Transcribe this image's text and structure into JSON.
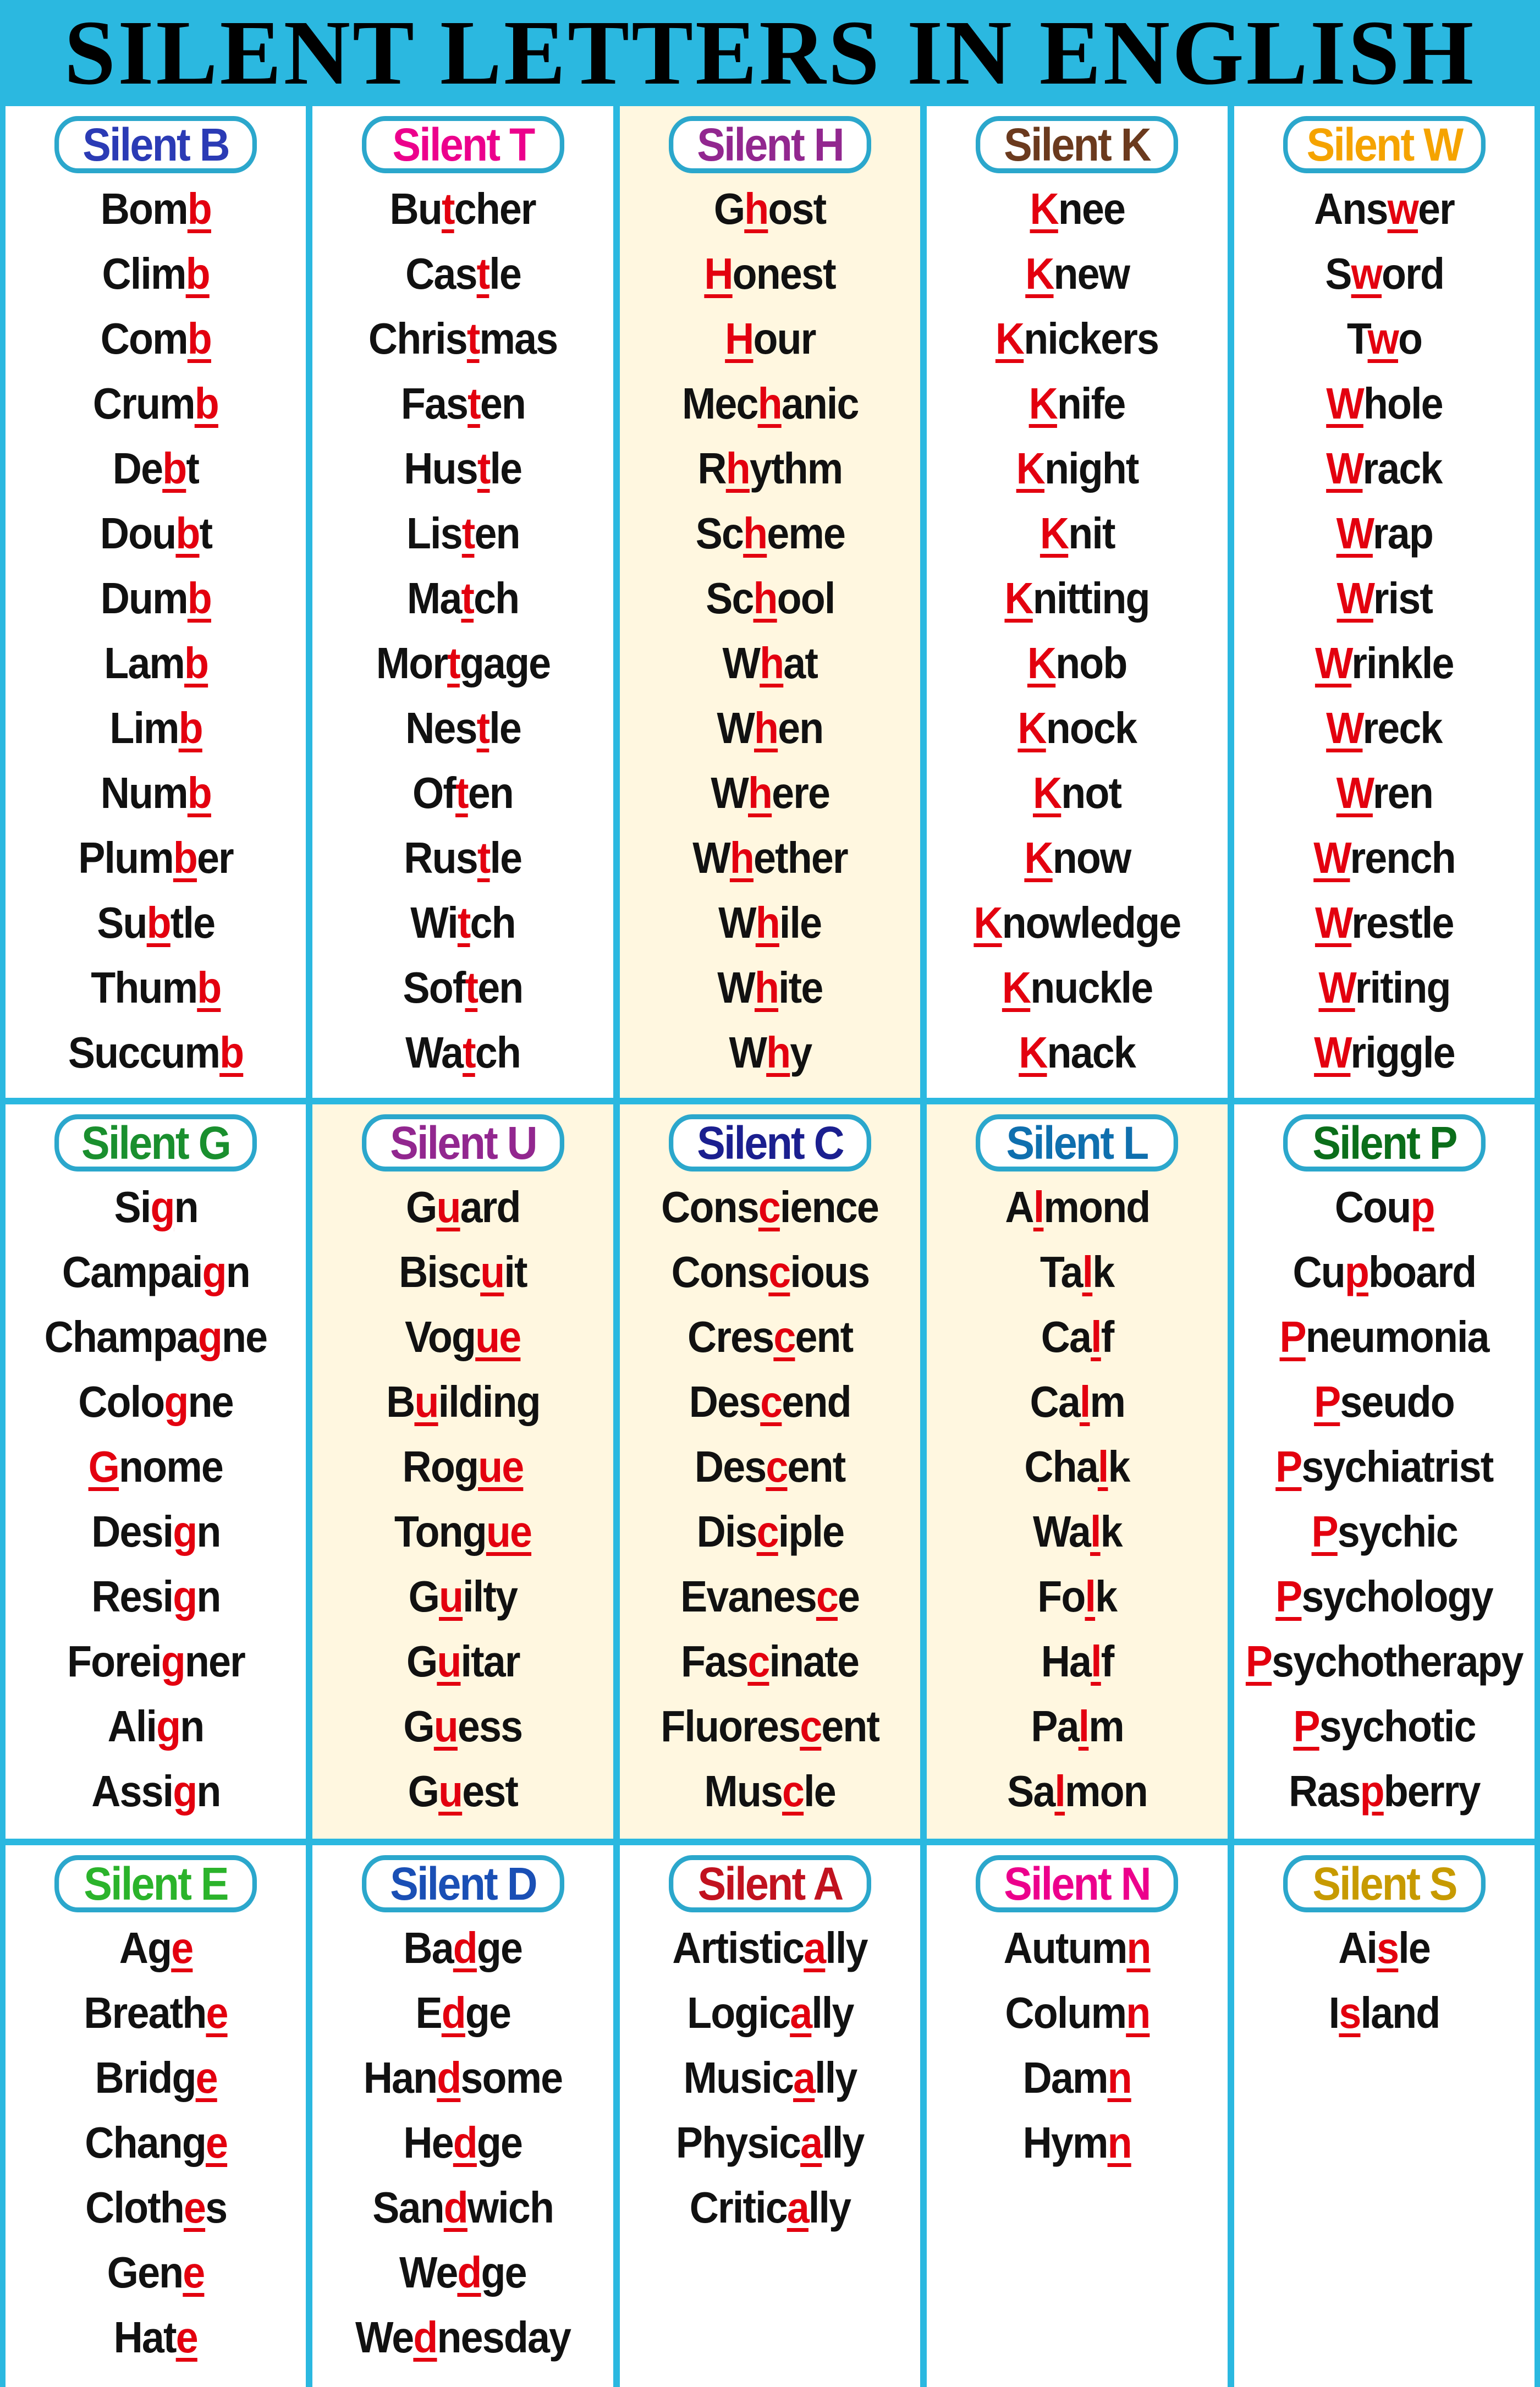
{
  "title": "SILENT LETTERS IN ENGLISH",
  "colors": {
    "background": "#2bb8e0",
    "silent_letter": "#e3000f",
    "pill_border": "#2ba7cc"
  },
  "sections": [
    {
      "label": "Silent B",
      "color": "#2b3bb5",
      "words": [
        [
          "Bom",
          "b",
          ""
        ],
        [
          "Clim",
          "b",
          ""
        ],
        [
          "Com",
          "b",
          ""
        ],
        [
          "Crum",
          "b",
          ""
        ],
        [
          "De",
          "b",
          "t"
        ],
        [
          "Dou",
          "b",
          "t"
        ],
        [
          "Dum",
          "b",
          ""
        ],
        [
          "Lam",
          "b",
          ""
        ],
        [
          "Lim",
          "b",
          ""
        ],
        [
          "Num",
          "b",
          ""
        ],
        [
          "Plum",
          "b",
          "er"
        ],
        [
          "Su",
          "b",
          "tle"
        ],
        [
          "Thum",
          "b",
          ""
        ],
        [
          "Succum",
          "b",
          ""
        ]
      ]
    },
    {
      "label": "Silent T",
      "color": "#ec008c",
      "words": [
        [
          "Bu",
          "t",
          "cher"
        ],
        [
          "Cas",
          "t",
          "le"
        ],
        [
          "Chris",
          "t",
          "mas"
        ],
        [
          "Fas",
          "t",
          "en"
        ],
        [
          "Hus",
          "t",
          "le"
        ],
        [
          "Lis",
          "t",
          "en"
        ],
        [
          "Ma",
          "t",
          "ch"
        ],
        [
          "Mor",
          "t",
          "gage"
        ],
        [
          "Nes",
          "t",
          "le"
        ],
        [
          "Of",
          "t",
          "en"
        ],
        [
          "Rus",
          "t",
          "le"
        ],
        [
          "Wi",
          "t",
          "ch"
        ],
        [
          "Sof",
          "t",
          "en"
        ],
        [
          "Wa",
          "t",
          "ch"
        ]
      ]
    },
    {
      "label": "Silent H",
      "color": "#92278f",
      "words": [
        [
          "G",
          "h",
          "ost"
        ],
        [
          "",
          "H",
          "onest"
        ],
        [
          "",
          "H",
          "our"
        ],
        [
          "Mec",
          "h",
          "anic"
        ],
        [
          "R",
          "h",
          "ythm"
        ],
        [
          "Sc",
          "h",
          "eme"
        ],
        [
          "Sc",
          "h",
          "ool"
        ],
        [
          "W",
          "h",
          "at"
        ],
        [
          "W",
          "h",
          "en"
        ],
        [
          "W",
          "h",
          "ere"
        ],
        [
          "W",
          "h",
          "ether"
        ],
        [
          "W",
          "h",
          "ile"
        ],
        [
          "W",
          "h",
          "ite"
        ],
        [
          "W",
          "h",
          "y"
        ]
      ]
    },
    {
      "label": "Silent K",
      "color": "#6b3a1e",
      "words": [
        [
          "",
          "K",
          "nee"
        ],
        [
          "",
          "K",
          "new"
        ],
        [
          "",
          "K",
          "nickers"
        ],
        [
          "",
          "K",
          "nife"
        ],
        [
          "",
          "K",
          "night"
        ],
        [
          "",
          "K",
          "nit"
        ],
        [
          "",
          "K",
          "nitting"
        ],
        [
          "",
          "K",
          "nob"
        ],
        [
          "",
          "K",
          "nock"
        ],
        [
          "",
          "K",
          "not"
        ],
        [
          "",
          "K",
          "now"
        ],
        [
          "",
          "K",
          "nowledge"
        ],
        [
          "",
          "K",
          "nuckle"
        ],
        [
          "",
          "K",
          "nack"
        ]
      ]
    },
    {
      "label": "Silent W",
      "color": "#f5a300",
      "words": [
        [
          "Ans",
          "w",
          "er"
        ],
        [
          "S",
          "w",
          "ord"
        ],
        [
          "T",
          "w",
          "o"
        ],
        [
          "",
          "W",
          "hole"
        ],
        [
          "",
          "W",
          "rack"
        ],
        [
          "",
          "W",
          "rap"
        ],
        [
          "",
          "W",
          "rist"
        ],
        [
          "",
          "W",
          "rinkle"
        ],
        [
          "",
          "W",
          "reck"
        ],
        [
          "",
          "W",
          "ren"
        ],
        [
          "",
          "W",
          "rench"
        ],
        [
          "",
          "W",
          "restle"
        ],
        [
          "",
          "W",
          "riting"
        ],
        [
          "",
          "W",
          "riggle"
        ]
      ]
    },
    {
      "label": "Silent G",
      "color": "#1a8f2e",
      "words": [
        [
          "Si",
          "g",
          "n"
        ],
        [
          "Campai",
          "g",
          "n"
        ],
        [
          "Champa",
          "g",
          "ne"
        ],
        [
          "Colo",
          "g",
          "ne"
        ],
        [
          "",
          "G",
          "nome"
        ],
        [
          "Desi",
          "g",
          "n"
        ],
        [
          "Resi",
          "g",
          "n"
        ],
        [
          "Forei",
          "g",
          "ner"
        ],
        [
          "Ali",
          "g",
          "n"
        ],
        [
          "Assi",
          "g",
          "n"
        ]
      ]
    },
    {
      "label": "Silent U",
      "color": "#92278f",
      "words": [
        [
          "G",
          "u",
          "ard"
        ],
        [
          "Bisc",
          "u",
          "it"
        ],
        [
          "Vog",
          "ue",
          ""
        ],
        [
          "B",
          "u",
          "ilding"
        ],
        [
          "Rog",
          "ue",
          ""
        ],
        [
          "Tong",
          "ue",
          ""
        ],
        [
          "G",
          "u",
          "ilty"
        ],
        [
          "G",
          "u",
          "itar"
        ],
        [
          "G",
          "u",
          "ess"
        ],
        [
          "G",
          "u",
          "est"
        ]
      ]
    },
    {
      "label": "Silent C",
      "color": "#1b1f8f",
      "words": [
        [
          "Cons",
          "c",
          "ience"
        ],
        [
          "Cons",
          "c",
          "ious"
        ],
        [
          "Cres",
          "c",
          "ent"
        ],
        [
          "Des",
          "c",
          "end"
        ],
        [
          "Des",
          "c",
          "ent"
        ],
        [
          "Dis",
          "c",
          "iple"
        ],
        [
          "Evanes",
          "c",
          "e"
        ],
        [
          "Fas",
          "c",
          "inate"
        ],
        [
          "Fluores",
          "c",
          "ent"
        ],
        [
          "Mus",
          "c",
          "le"
        ]
      ]
    },
    {
      "label": "Silent L",
      "color": "#0f6fae",
      "words": [
        [
          "A",
          "l",
          "mond"
        ],
        [
          "Ta",
          "l",
          "k"
        ],
        [
          "Ca",
          "l",
          "f"
        ],
        [
          "Ca",
          "l",
          "m"
        ],
        [
          "Cha",
          "l",
          "k"
        ],
        [
          "Wa",
          "l",
          "k"
        ],
        [
          "Fo",
          "l",
          "k"
        ],
        [
          "Ha",
          "l",
          "f"
        ],
        [
          "Pa",
          "l",
          "m"
        ],
        [
          "Sa",
          "l",
          "mon"
        ]
      ]
    },
    {
      "label": "Silent P",
      "color": "#0b6e1a",
      "words": [
        [
          "Cou",
          "p",
          ""
        ],
        [
          "Cu",
          "p",
          "board"
        ],
        [
          "",
          "P",
          "neumonia"
        ],
        [
          "",
          "P",
          "seudo"
        ],
        [
          "",
          "P",
          "sychiatrist"
        ],
        [
          "",
          "P",
          "sychic"
        ],
        [
          "",
          "P",
          "sychology"
        ],
        [
          "",
          "P",
          "sychotherapy"
        ],
        [
          "",
          "P",
          "sychotic"
        ],
        [
          "Ras",
          "p",
          "berry"
        ]
      ]
    },
    {
      "label": "Silent E",
      "color": "#2bb32b",
      "words": [
        [
          "Ag",
          "e",
          ""
        ],
        [
          "Breath",
          "e",
          ""
        ],
        [
          "Bridg",
          "e",
          ""
        ],
        [
          "Chang",
          "e",
          ""
        ],
        [
          "Cloth",
          "e",
          "s"
        ],
        [
          "Gen",
          "e",
          ""
        ],
        [
          "Hat",
          "e",
          ""
        ]
      ]
    },
    {
      "label": "Silent D",
      "color": "#1a4fb5",
      "words": [
        [
          "Ba",
          "d",
          "ge"
        ],
        [
          "E",
          "d",
          "ge"
        ],
        [
          "Han",
          "d",
          "some"
        ],
        [
          "He",
          "d",
          "ge"
        ],
        [
          "San",
          "d",
          "wich"
        ],
        [
          "We",
          "d",
          "ge"
        ],
        [
          "We",
          "d",
          "nesday"
        ]
      ]
    },
    {
      "label": "Silent A",
      "color": "#c1121f",
      "words": [
        [
          "Artistic",
          "a",
          "lly"
        ],
        [
          "Logic",
          "a",
          "lly"
        ],
        [
          "Music",
          "a",
          "lly"
        ],
        [
          "Physic",
          "a",
          "lly"
        ],
        [
          "Critic",
          "a",
          "lly"
        ]
      ]
    },
    {
      "label": "Silent N",
      "color": "#ec008c",
      "words": [
        [
          "Autum",
          "n",
          ""
        ],
        [
          "Colum",
          "n",
          ""
        ],
        [
          "Dam",
          "n",
          ""
        ],
        [
          "Hym",
          "n",
          ""
        ]
      ]
    },
    {
      "label": "Silent S",
      "color": "#c79a00",
      "words": [
        [
          "Ai",
          "s",
          "le"
        ],
        [
          "I",
          "s",
          "land"
        ]
      ]
    }
  ]
}
